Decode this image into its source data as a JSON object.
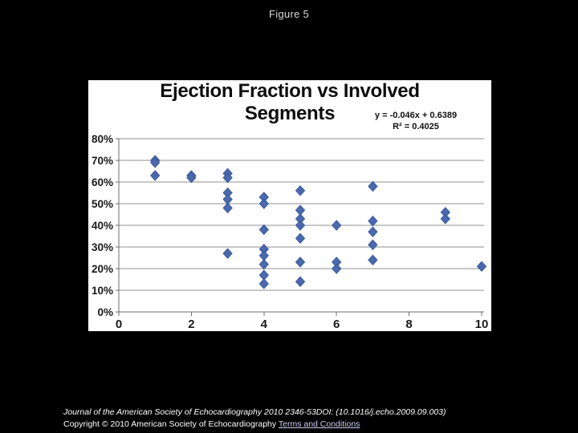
{
  "figure_label": "Figure 5",
  "chart_data": {
    "type": "scatter",
    "title": "Ejection Fraction vs Involved Segments",
    "annotations": {
      "equation": "y = -0.046x + 0.6389",
      "r_squared": "R² = 0.4025"
    },
    "xlabel": "",
    "ylabel": "",
    "xlim": [
      0,
      10
    ],
    "ylim_pct": [
      0,
      80
    ],
    "x_ticks": [
      0,
      2,
      4,
      6,
      8,
      10
    ],
    "y_ticks_pct": [
      0,
      10,
      20,
      30,
      40,
      50,
      60,
      70,
      80
    ],
    "y_tick_labels": [
      "0%",
      "10%",
      "20%",
      "30%",
      "40%",
      "50%",
      "60%",
      "70%",
      "80%"
    ],
    "grid": true,
    "legend": "none",
    "marker": "diamond",
    "colors": {
      "marker_fill": "#4a6aad",
      "marker_stroke": "#3a5a9b",
      "gridline": "#909090",
      "axis_line": "#6e6e6e",
      "axis_text": "#1a1a1a",
      "panel_bg": "#ffffff",
      "page_bg": "#000000"
    },
    "points": [
      {
        "x": 1,
        "y_pct": 70
      },
      {
        "x": 1,
        "y_pct": 69
      },
      {
        "x": 1,
        "y_pct": 63
      },
      {
        "x": 2,
        "y_pct": 63
      },
      {
        "x": 2,
        "y_pct": 62
      },
      {
        "x": 3,
        "y_pct": 64
      },
      {
        "x": 3,
        "y_pct": 62
      },
      {
        "x": 3,
        "y_pct": 55
      },
      {
        "x": 3,
        "y_pct": 52
      },
      {
        "x": 3,
        "y_pct": 48
      },
      {
        "x": 3,
        "y_pct": 27
      },
      {
        "x": 4,
        "y_pct": 53
      },
      {
        "x": 4,
        "y_pct": 50
      },
      {
        "x": 4,
        "y_pct": 38
      },
      {
        "x": 4,
        "y_pct": 29
      },
      {
        "x": 4,
        "y_pct": 26
      },
      {
        "x": 4,
        "y_pct": 22
      },
      {
        "x": 4,
        "y_pct": 17
      },
      {
        "x": 4,
        "y_pct": 13
      },
      {
        "x": 5,
        "y_pct": 56
      },
      {
        "x": 5,
        "y_pct": 47
      },
      {
        "x": 5,
        "y_pct": 43
      },
      {
        "x": 5,
        "y_pct": 40
      },
      {
        "x": 5,
        "y_pct": 34
      },
      {
        "x": 5,
        "y_pct": 23
      },
      {
        "x": 5,
        "y_pct": 14
      },
      {
        "x": 6,
        "y_pct": 40
      },
      {
        "x": 6,
        "y_pct": 23
      },
      {
        "x": 6,
        "y_pct": 20
      },
      {
        "x": 7,
        "y_pct": 58
      },
      {
        "x": 7,
        "y_pct": 42
      },
      {
        "x": 7,
        "y_pct": 37
      },
      {
        "x": 7,
        "y_pct": 31
      },
      {
        "x": 7,
        "y_pct": 24
      },
      {
        "x": 9,
        "y_pct": 46
      },
      {
        "x": 9,
        "y_pct": 43
      },
      {
        "x": 10,
        "y_pct": 21
      }
    ]
  },
  "footer": {
    "citation": "Journal of the American Society of Echocardiography 2010 2346-53DOI: (10.1016/j.echo.2009.09.003)",
    "copyright_prefix": "Copyright © 2010 American Society of Echocardiography ",
    "terms_link": "Terms and Conditions"
  }
}
